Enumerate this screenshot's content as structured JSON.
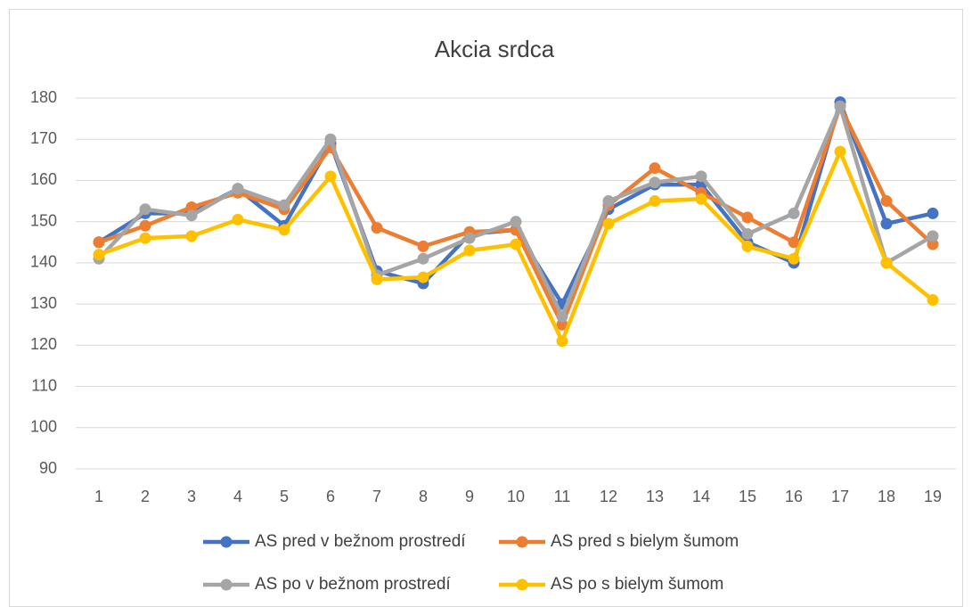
{
  "chart_data": {
    "type": "line",
    "title": "Akcia srdca",
    "categories": [
      1,
      2,
      3,
      4,
      5,
      6,
      7,
      8,
      9,
      10,
      11,
      12,
      13,
      14,
      15,
      16,
      17,
      18,
      19
    ],
    "ylim": [
      90,
      180
    ],
    "yticks": [
      90,
      100,
      110,
      120,
      130,
      140,
      150,
      160,
      170,
      180
    ],
    "grid": true,
    "legend": "bottom",
    "series": [
      {
        "name": "AS pred v bežnom prostredí",
        "color": "#4472c4",
        "values": [
          145,
          152,
          152,
          158,
          149,
          169,
          138,
          135,
          147,
          148,
          130,
          153,
          159,
          159,
          145,
          140,
          179,
          149.5,
          152
        ]
      },
      {
        "name": "AS pred s bielym šumom",
        "color": "#ed7d31",
        "values": [
          145,
          149,
          153.5,
          157,
          153,
          168,
          148.5,
          144,
          147.5,
          148,
          125,
          154,
          163,
          157,
          151,
          145,
          178,
          155,
          144.5
        ]
      },
      {
        "name": "AS po v bežnom prostredí",
        "color": "#a5a5a5",
        "values": [
          141,
          153,
          151.5,
          158,
          154,
          170,
          137,
          141,
          146,
          150,
          127,
          155,
          159.5,
          161,
          147,
          152,
          178,
          140,
          146.5
        ]
      },
      {
        "name": "AS po s bielym šumom",
        "color": "#ffc000",
        "values": [
          142,
          146,
          146.5,
          150.5,
          148,
          161,
          136,
          136.5,
          143,
          144.5,
          121,
          149.5,
          155,
          155.5,
          144,
          141,
          167,
          140,
          131
        ]
      }
    ]
  }
}
